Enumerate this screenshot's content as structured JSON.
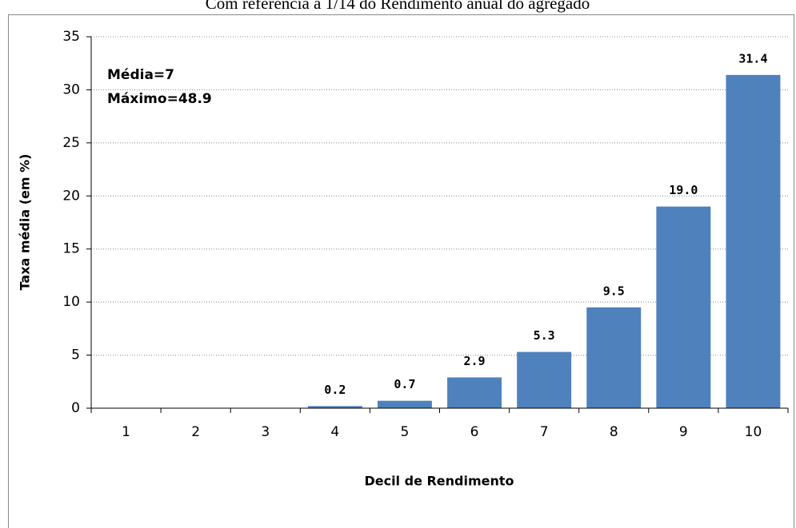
{
  "chart_data": {
    "type": "bar",
    "title": "Com referência a 1/14 do Rendimento anual do agregado",
    "x_label": "Decil de Rendimento",
    "y_label": "Taxa média (em %)",
    "annotations": [
      "Média=7",
      "Máximo=48.9"
    ],
    "categories": [
      "1",
      "2",
      "3",
      "4",
      "5",
      "6",
      "7",
      "8",
      "9",
      "10"
    ],
    "values": [
      0,
      0,
      0,
      0.2,
      0.7,
      2.9,
      5.3,
      9.5,
      19.0,
      31.4
    ],
    "value_labels": [
      null,
      null,
      null,
      "0.2",
      "0.7",
      "2.9",
      "5.3",
      "9.5",
      "19.0",
      "31.4"
    ],
    "color": "#4f81bd",
    "ylim": [
      0,
      35
    ],
    "yticks": [
      0,
      5,
      10,
      15,
      20,
      25,
      30,
      35
    ],
    "grid": true
  }
}
